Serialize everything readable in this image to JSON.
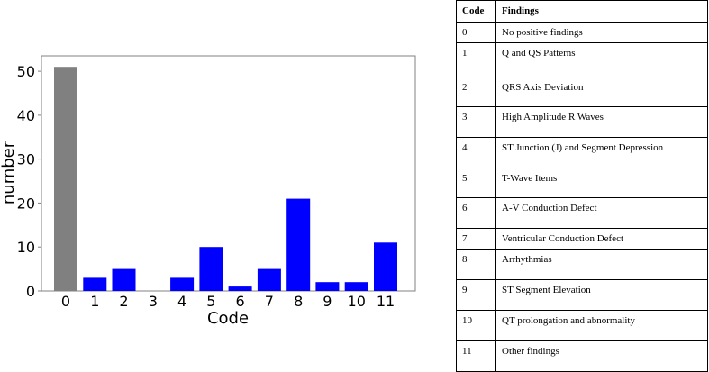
{
  "chart_data": {
    "type": "bar",
    "xlabel": "Code",
    "ylabel": "number",
    "categories": [
      "0",
      "1",
      "2",
      "3",
      "4",
      "5",
      "6",
      "7",
      "8",
      "9",
      "10",
      "11"
    ],
    "values": [
      51,
      3,
      5,
      0,
      3,
      10,
      1,
      5,
      21,
      2,
      2,
      11
    ],
    "colors": [
      "#808080",
      "#0000ff",
      "#0000ff",
      "#0000ff",
      "#0000ff",
      "#0000ff",
      "#0000ff",
      "#0000ff",
      "#0000ff",
      "#0000ff",
      "#0000ff",
      "#0000ff"
    ],
    "ylim": [
      0,
      53.5
    ],
    "yticks": [
      "0",
      "10",
      "20",
      "30",
      "40",
      "50"
    ],
    "grid": false
  },
  "table": {
    "headers": [
      "Code",
      "Findings"
    ],
    "rows": [
      {
        "code": "0",
        "finding": "No positive findings"
      },
      {
        "code": "1",
        "finding": "Q and QS Patterns"
      },
      {
        "code": "2",
        "finding": "QRS Axis Deviation"
      },
      {
        "code": "3",
        "finding": "High Amplitude R Waves"
      },
      {
        "code": "4",
        "finding": "ST Junction (J) and Segment Depression"
      },
      {
        "code": "5",
        "finding": "T-Wave Items"
      },
      {
        "code": "6",
        "finding": "A-V Conduction Defect"
      },
      {
        "code": "7",
        "finding": "Ventricular Conduction Defect"
      },
      {
        "code": "8",
        "finding": "Arrhythmias"
      },
      {
        "code": "9",
        "finding": "ST Segment Elevation"
      },
      {
        "code": "10",
        "finding": "QT prolongation and abnormality"
      },
      {
        "code": "11",
        "finding": "Other findings"
      }
    ]
  }
}
